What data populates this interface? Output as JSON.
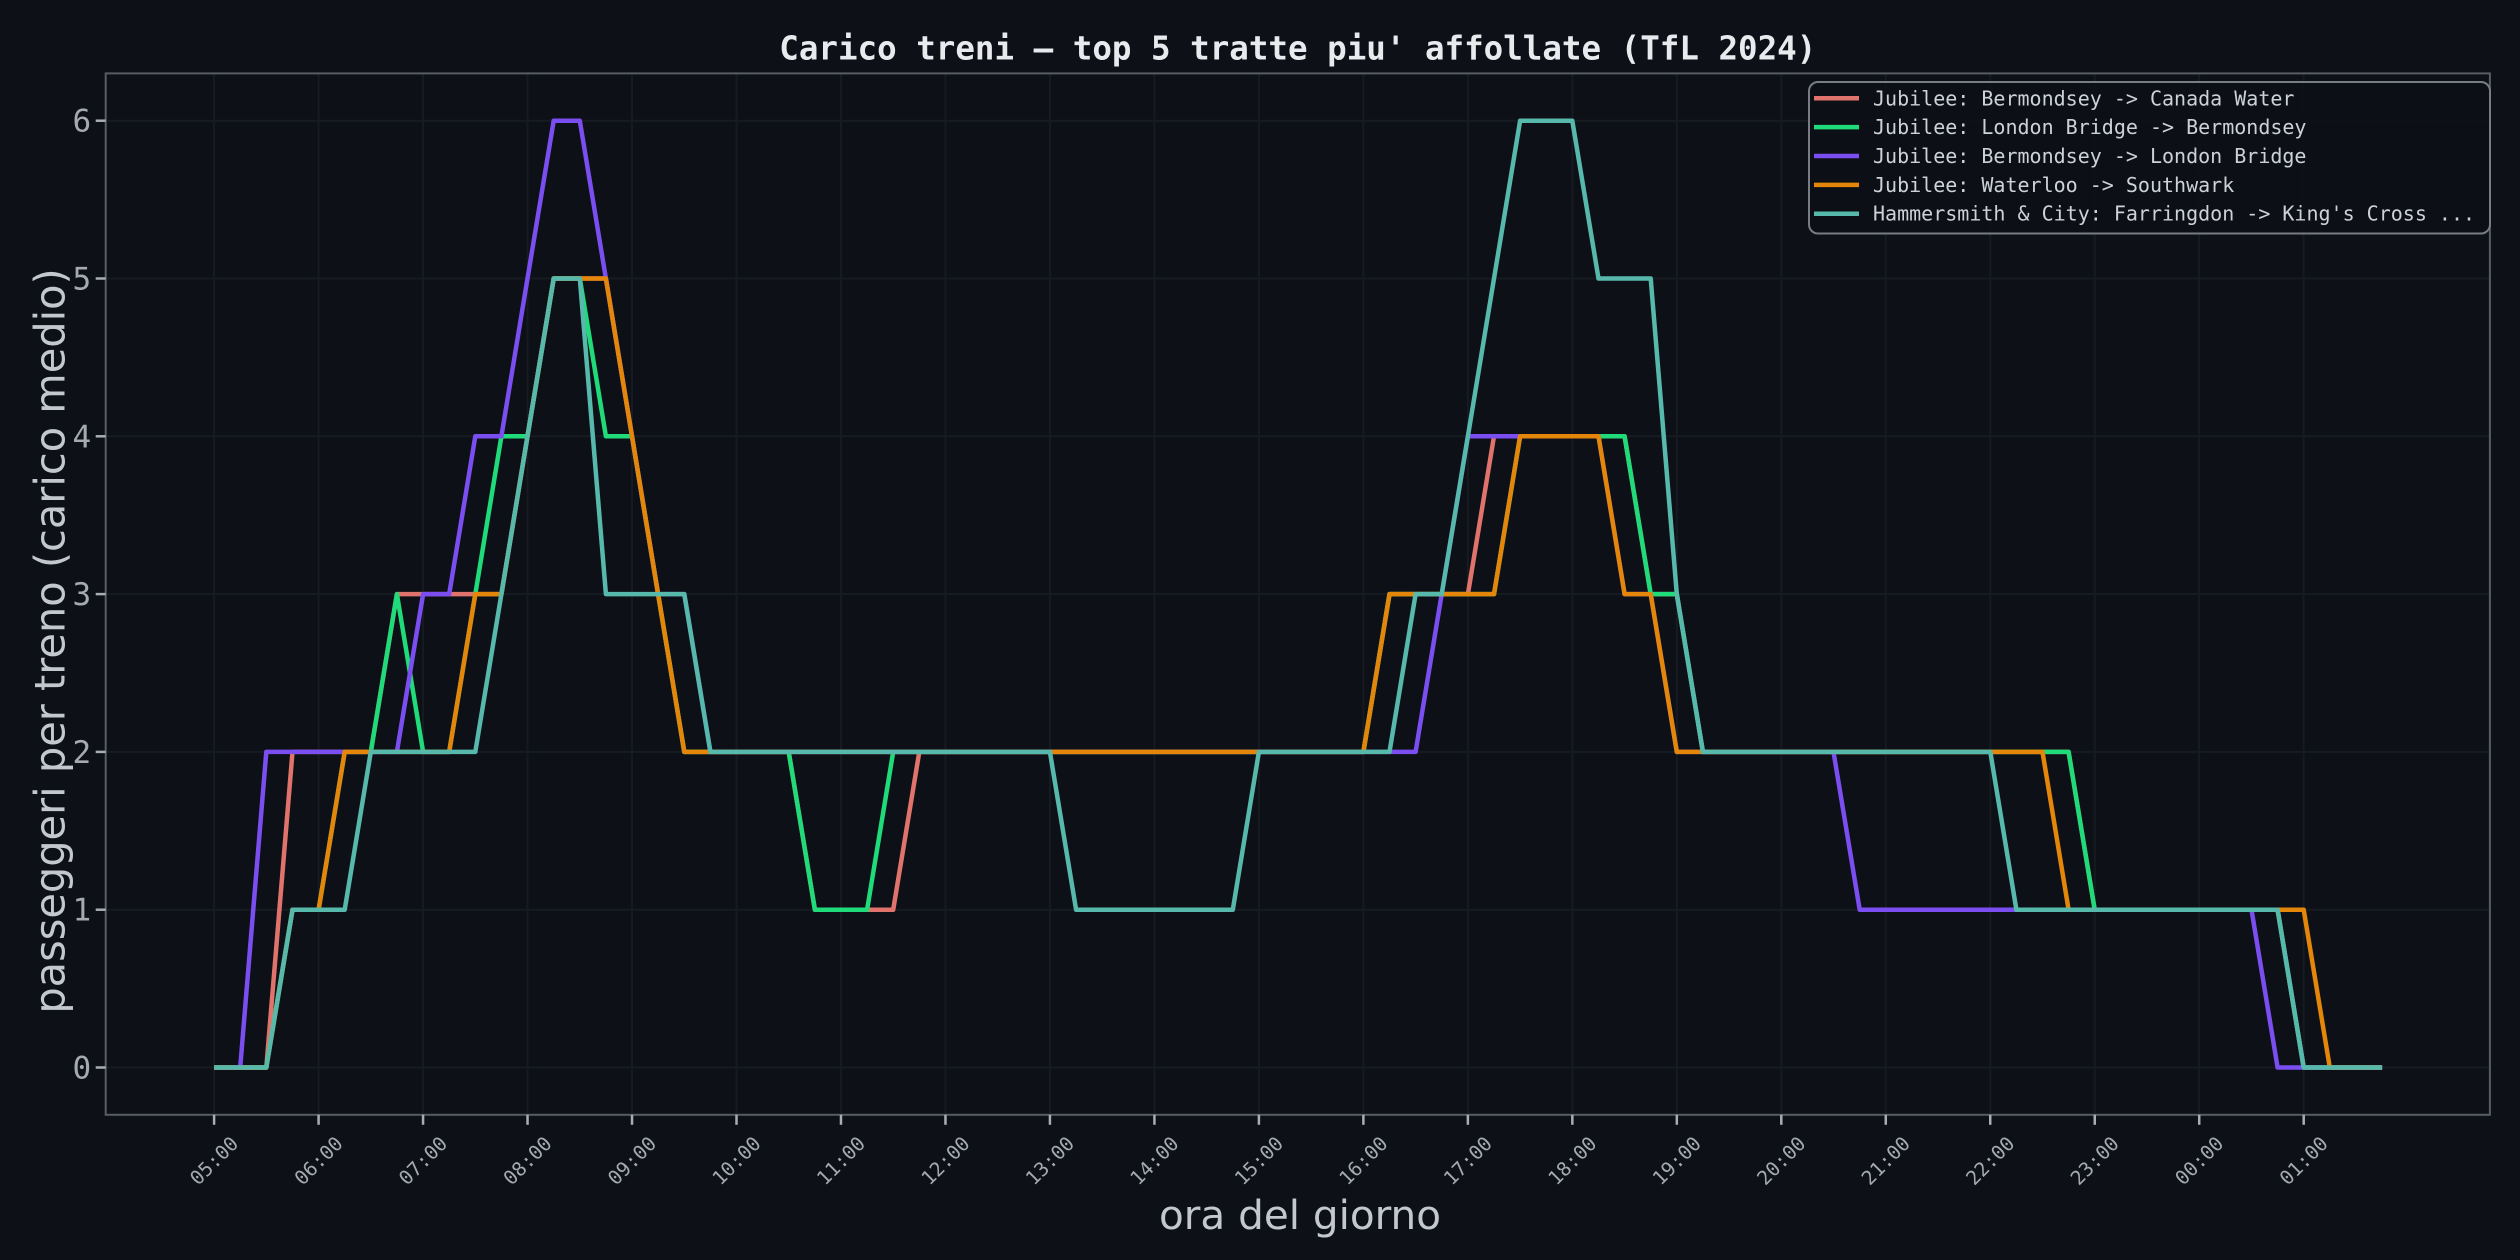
{
  "chart_data": {
    "type": "line",
    "title": "Carico treni — top 5 tratte piu' affollate (TfL 2024)",
    "xlabel": "ora del giorno",
    "ylabel": "passeggeri per treno (carico medio)",
    "x_tick_labels": [
      "05:00",
      "06:00",
      "07:00",
      "08:00",
      "09:00",
      "10:00",
      "11:00",
      "12:00",
      "13:00",
      "14:00",
      "15:00",
      "16:00",
      "17:00",
      "18:00",
      "19:00",
      "20:00",
      "21:00",
      "22:00",
      "23:00",
      "00:00",
      "01:00"
    ],
    "y_tick_labels": [
      "0",
      "1",
      "2",
      "3",
      "4",
      "5",
      "6"
    ],
    "y_ticks": [
      0,
      1,
      2,
      3,
      4,
      5,
      6
    ],
    "ylim": [
      -0.3,
      6.3
    ],
    "x_data_start": "05:00",
    "x_data_end": "01:45",
    "grid": true,
    "legend_position": "upper right",
    "series": [
      {
        "name": "Jubilee: Bermondsey -> Canada Water",
        "color": "#e0736b",
        "points": [
          [
            "05:00",
            0
          ],
          [
            "05:30",
            0
          ],
          [
            "05:45",
            2
          ],
          [
            "06:30",
            2
          ],
          [
            "06:45",
            3
          ],
          [
            "07:45",
            3
          ],
          [
            "08:00",
            4
          ],
          [
            "08:15",
            5
          ],
          [
            "08:45",
            5
          ],
          [
            "09:00",
            4
          ],
          [
            "09:15",
            3
          ],
          [
            "09:30",
            2
          ],
          [
            "10:30",
            2
          ],
          [
            "10:45",
            1
          ],
          [
            "11:30",
            1
          ],
          [
            "11:45",
            2
          ],
          [
            "16:00",
            2
          ],
          [
            "16:15",
            3
          ],
          [
            "17:00",
            3
          ],
          [
            "17:15",
            4
          ],
          [
            "18:30",
            4
          ],
          [
            "18:45",
            3
          ],
          [
            "19:00",
            3
          ],
          [
            "19:15",
            2
          ],
          [
            "22:45",
            2
          ],
          [
            "23:00",
            1
          ],
          [
            "00:45",
            1
          ],
          [
            "01:00",
            0
          ],
          [
            "01:45",
            0
          ]
        ]
      },
      {
        "name": "Jubilee: London Bridge -> Bermondsey",
        "color": "#1fdb79",
        "points": [
          [
            "05:00",
            0
          ],
          [
            "05:30",
            0
          ],
          [
            "05:45",
            1
          ],
          [
            "06:00",
            1
          ],
          [
            "06:15",
            2
          ],
          [
            "06:30",
            2
          ],
          [
            "06:45",
            3
          ],
          [
            "07:00",
            2
          ],
          [
            "07:15",
            2
          ],
          [
            "07:30",
            3
          ],
          [
            "07:45",
            4
          ],
          [
            "08:00",
            4
          ],
          [
            "08:15",
            5
          ],
          [
            "08:30",
            5
          ],
          [
            "08:45",
            4
          ],
          [
            "09:00",
            4
          ],
          [
            "09:15",
            3
          ],
          [
            "09:30",
            2
          ],
          [
            "10:30",
            2
          ],
          [
            "10:45",
            1
          ],
          [
            "11:15",
            1
          ],
          [
            "11:30",
            2
          ],
          [
            "16:00",
            2
          ],
          [
            "16:15",
            3
          ],
          [
            "17:15",
            3
          ],
          [
            "17:30",
            4
          ],
          [
            "18:30",
            4
          ],
          [
            "18:45",
            3
          ],
          [
            "19:00",
            3
          ],
          [
            "19:15",
            2
          ],
          [
            "22:45",
            2
          ],
          [
            "23:00",
            1
          ],
          [
            "00:45",
            1
          ],
          [
            "01:00",
            0
          ],
          [
            "01:45",
            0
          ]
        ]
      },
      {
        "name": "Jubilee: Bermondsey -> London Bridge",
        "color": "#7a4ef0",
        "points": [
          [
            "05:00",
            0
          ],
          [
            "05:15",
            0
          ],
          [
            "05:30",
            2
          ],
          [
            "06:45",
            2
          ],
          [
            "07:00",
            3
          ],
          [
            "07:15",
            3
          ],
          [
            "07:30",
            4
          ],
          [
            "07:45",
            4
          ],
          [
            "08:00",
            5
          ],
          [
            "08:15",
            6
          ],
          [
            "08:30",
            6
          ],
          [
            "08:45",
            5
          ],
          [
            "09:00",
            4
          ],
          [
            "09:15",
            3
          ],
          [
            "09:30",
            3
          ],
          [
            "09:45",
            2
          ],
          [
            "16:30",
            2
          ],
          [
            "16:45",
            3
          ],
          [
            "17:00",
            4
          ],
          [
            "18:15",
            4
          ],
          [
            "18:30",
            3
          ],
          [
            "18:45",
            3
          ],
          [
            "19:00",
            2
          ],
          [
            "20:30",
            2
          ],
          [
            "20:45",
            1
          ],
          [
            "00:30",
            1
          ],
          [
            "00:45",
            0
          ],
          [
            "01:45",
            0
          ]
        ]
      },
      {
        "name": "Jubilee: Waterloo -> Southwark",
        "color": "#e3860a",
        "points": [
          [
            "05:00",
            0
          ],
          [
            "05:30",
            0
          ],
          [
            "05:45",
            1
          ],
          [
            "06:00",
            1
          ],
          [
            "06:15",
            2
          ],
          [
            "07:15",
            2
          ],
          [
            "07:30",
            3
          ],
          [
            "07:45",
            3
          ],
          [
            "08:00",
            4
          ],
          [
            "08:15",
            5
          ],
          [
            "08:45",
            5
          ],
          [
            "09:00",
            4
          ],
          [
            "09:15",
            3
          ],
          [
            "09:30",
            2
          ],
          [
            "16:00",
            2
          ],
          [
            "16:15",
            3
          ],
          [
            "17:15",
            3
          ],
          [
            "17:30",
            4
          ],
          [
            "18:15",
            4
          ],
          [
            "18:30",
            3
          ],
          [
            "18:45",
            3
          ],
          [
            "19:00",
            2
          ],
          [
            "22:30",
            2
          ],
          [
            "22:45",
            1
          ],
          [
            "01:00",
            1
          ],
          [
            "01:15",
            0
          ],
          [
            "01:45",
            0
          ]
        ]
      },
      {
        "name": "Hammersmith & City: Farringdon -> King's Cross ...",
        "color": "#56b9ab",
        "points": [
          [
            "05:00",
            0
          ],
          [
            "05:30",
            0
          ],
          [
            "05:45",
            1
          ],
          [
            "06:15",
            1
          ],
          [
            "06:30",
            2
          ],
          [
            "07:30",
            2
          ],
          [
            "07:45",
            3
          ],
          [
            "08:00",
            4
          ],
          [
            "08:15",
            5
          ],
          [
            "08:30",
            5
          ],
          [
            "08:45",
            3
          ],
          [
            "09:30",
            3
          ],
          [
            "09:45",
            2
          ],
          [
            "13:00",
            2
          ],
          [
            "13:15",
            1
          ],
          [
            "14:45",
            1
          ],
          [
            "15:00",
            2
          ],
          [
            "16:15",
            2
          ],
          [
            "16:30",
            3
          ],
          [
            "16:45",
            3
          ],
          [
            "17:00",
            4
          ],
          [
            "17:30",
            6
          ],
          [
            "18:00",
            6
          ],
          [
            "18:15",
            5
          ],
          [
            "18:45",
            5
          ],
          [
            "19:00",
            3
          ],
          [
            "19:15",
            2
          ],
          [
            "22:00",
            2
          ],
          [
            "22:15",
            1
          ],
          [
            "00:45",
            1
          ],
          [
            "01:00",
            0
          ],
          [
            "01:45",
            0
          ]
        ]
      }
    ]
  },
  "style": {
    "background": "#0d1016",
    "grid_color": "#161b22",
    "spine_color": "#585d63",
    "tick_mark_color": "#a9aeb4",
    "tick_label_color": "#a4aab0",
    "axis_label_color": "#c3c8ce",
    "title_color": "#e8eaed",
    "legend_text_color": "#cdd2d6",
    "legend_border_color": "#787d83",
    "legend_background": "#0d1016"
  }
}
